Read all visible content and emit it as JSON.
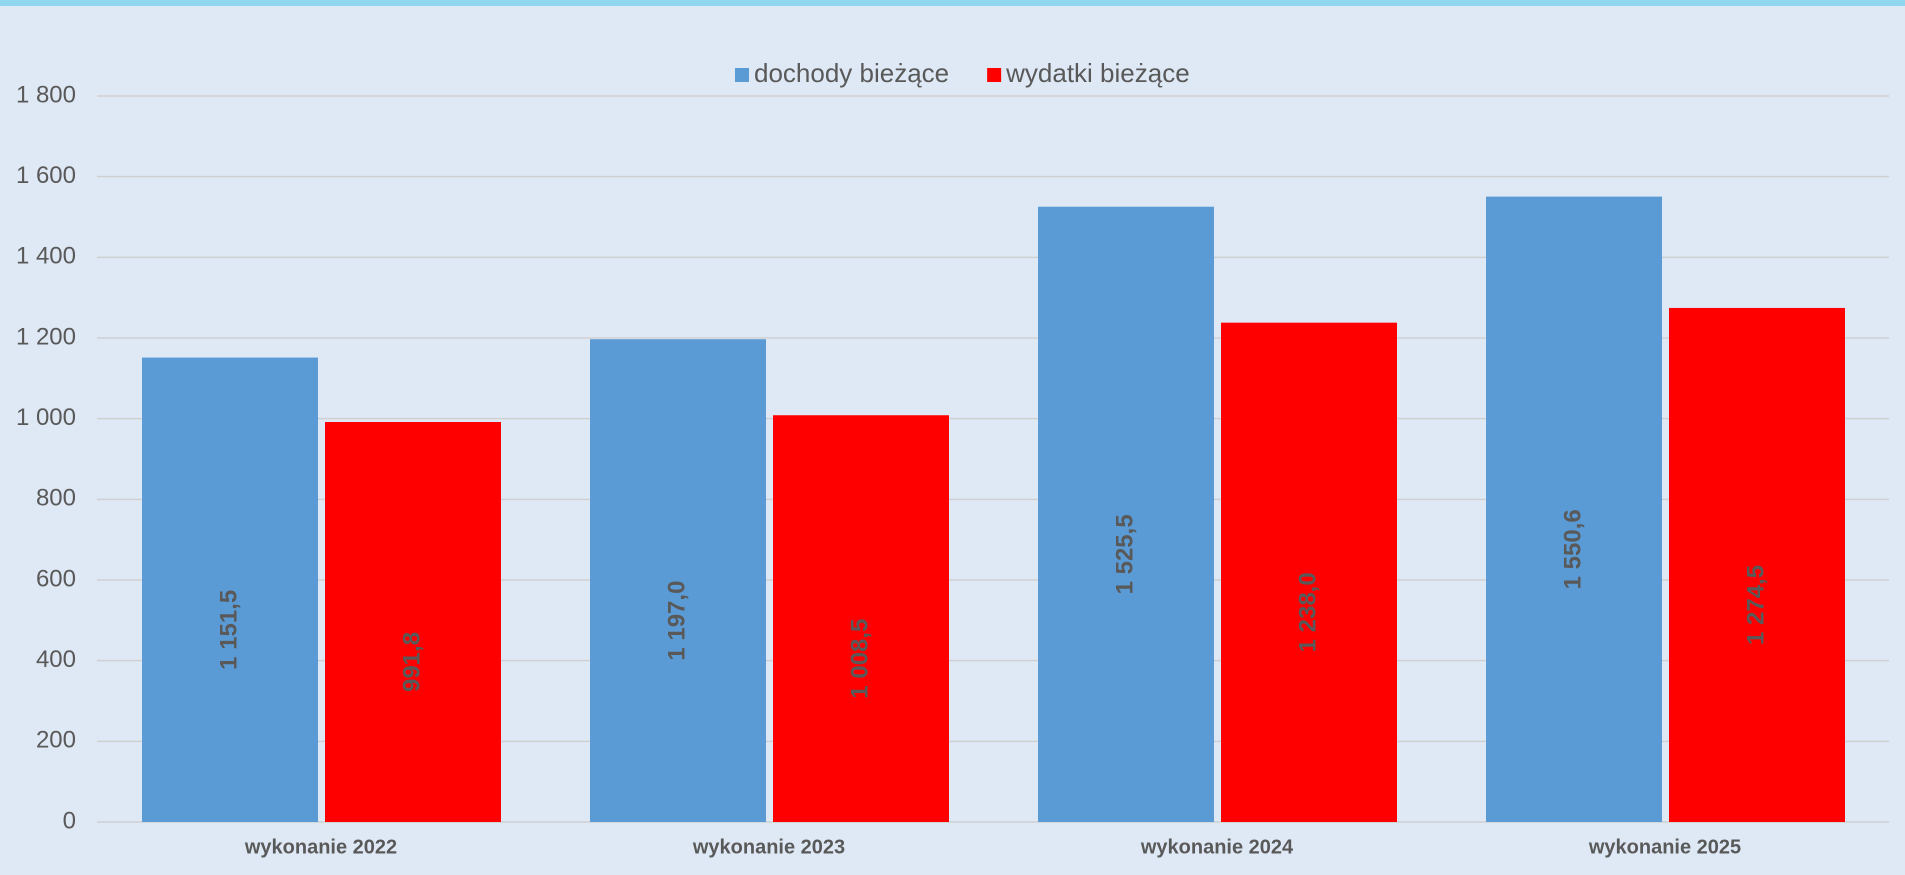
{
  "chart_data": {
    "type": "bar",
    "categories": [
      "wykonanie 2022",
      "wykonanie 2023",
      "wykonanie 2024",
      "wykonanie 2025"
    ],
    "series": [
      {
        "name": "dochody bieżące",
        "color": "#5b9bd5",
        "values": [
          1151.5,
          1197.0,
          1525.5,
          1550.6
        ],
        "value_labels": [
          "1 151,5",
          "1 197,0",
          "1 525,5",
          "1 550,6"
        ]
      },
      {
        "name": "wydatki bieżące",
        "color": "#ff0000",
        "values": [
          991.8,
          1008.5,
          1238.0,
          1274.5
        ],
        "value_labels": [
          "991,8",
          "1 008,5",
          "1 238,0",
          "1 274,5"
        ]
      }
    ],
    "ylim": [
      0,
      1800
    ],
    "yticks": [
      0,
      {
        "value": 200,
        "label": "200"
      },
      400,
      600,
      800,
      {
        "value": 1000,
        "label": "1 000"
      },
      {
        "value": 1200,
        "label": "1 200"
      },
      {
        "value": 1400,
        "label": "1 400"
      },
      {
        "value": 1600,
        "label": "1 600"
      },
      {
        "value": 1800,
        "label": "1 800"
      }
    ],
    "grid": true,
    "legend": "top"
  }
}
